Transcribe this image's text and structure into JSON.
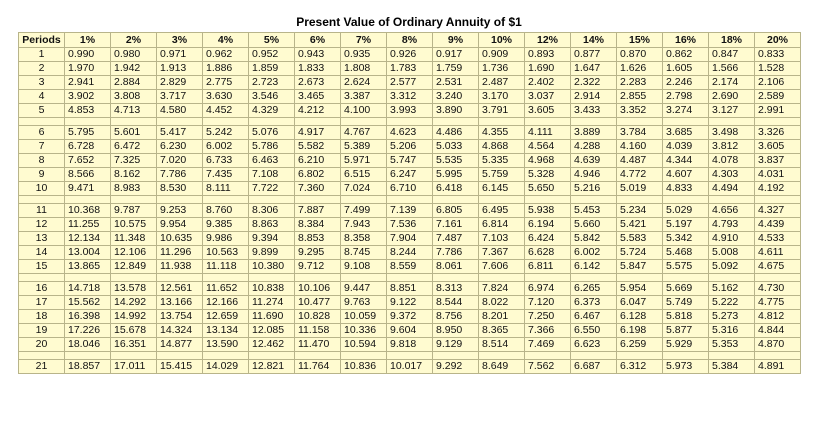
{
  "title": "Present Value of Ordinary Annuity of $1",
  "columns": [
    "Periods",
    "1%",
    "2%",
    "3%",
    "4%",
    "5%",
    "6%",
    "7%",
    "8%",
    "9%",
    "10%",
    "12%",
    "14%",
    "15%",
    "16%",
    "18%",
    "20%"
  ],
  "rows": [
    [
      "1",
      "0.990",
      "0.980",
      "0.971",
      "0.962",
      "0.952",
      "0.943",
      "0.935",
      "0.926",
      "0.917",
      "0.909",
      "0.893",
      "0.877",
      "0.870",
      "0.862",
      "0.847",
      "0.833"
    ],
    [
      "2",
      "1.970",
      "1.942",
      "1.913",
      "1.886",
      "1.859",
      "1.833",
      "1.808",
      "1.783",
      "1.759",
      "1.736",
      "1.690",
      "1.647",
      "1.626",
      "1.605",
      "1.566",
      "1.528"
    ],
    [
      "3",
      "2.941",
      "2.884",
      "2.829",
      "2.775",
      "2.723",
      "2.673",
      "2.624",
      "2.577",
      "2.531",
      "2.487",
      "2.402",
      "2.322",
      "2.283",
      "2.246",
      "2.174",
      "2.106"
    ],
    [
      "4",
      "3.902",
      "3.808",
      "3.717",
      "3.630",
      "3.546",
      "3.465",
      "3.387",
      "3.312",
      "3.240",
      "3.170",
      "3.037",
      "2.914",
      "2.855",
      "2.798",
      "2.690",
      "2.589"
    ],
    [
      "5",
      "4.853",
      "4.713",
      "4.580",
      "4.452",
      "4.329",
      "4.212",
      "4.100",
      "3.993",
      "3.890",
      "3.791",
      "3.605",
      "3.433",
      "3.352",
      "3.274",
      "3.127",
      "2.991"
    ],
    [
      "6",
      "5.795",
      "5.601",
      "5.417",
      "5.242",
      "5.076",
      "4.917",
      "4.767",
      "4.623",
      "4.486",
      "4.355",
      "4.111",
      "3.889",
      "3.784",
      "3.685",
      "3.498",
      "3.326"
    ],
    [
      "7",
      "6.728",
      "6.472",
      "6.230",
      "6.002",
      "5.786",
      "5.582",
      "5.389",
      "5.206",
      "5.033",
      "4.868",
      "4.564",
      "4.288",
      "4.160",
      "4.039",
      "3.812",
      "3.605"
    ],
    [
      "8",
      "7.652",
      "7.325",
      "7.020",
      "6.733",
      "6.463",
      "6.210",
      "5.971",
      "5.747",
      "5.535",
      "5.335",
      "4.968",
      "4.639",
      "4.487",
      "4.344",
      "4.078",
      "3.837"
    ],
    [
      "9",
      "8.566",
      "8.162",
      "7.786",
      "7.435",
      "7.108",
      "6.802",
      "6.515",
      "6.247",
      "5.995",
      "5.759",
      "5.328",
      "4.946",
      "4.772",
      "4.607",
      "4.303",
      "4.031"
    ],
    [
      "10",
      "9.471",
      "8.983",
      "8.530",
      "8.111",
      "7.722",
      "7.360",
      "7.024",
      "6.710",
      "6.418",
      "6.145",
      "5.650",
      "5.216",
      "5.019",
      "4.833",
      "4.494",
      "4.192"
    ],
    [
      "11",
      "10.368",
      "9.787",
      "9.253",
      "8.760",
      "8.306",
      "7.887",
      "7.499",
      "7.139",
      "6.805",
      "6.495",
      "5.938",
      "5.453",
      "5.234",
      "5.029",
      "4.656",
      "4.327"
    ],
    [
      "12",
      "11.255",
      "10.575",
      "9.954",
      "9.385",
      "8.863",
      "8.384",
      "7.943",
      "7.536",
      "7.161",
      "6.814",
      "6.194",
      "5.660",
      "5.421",
      "5.197",
      "4.793",
      "4.439"
    ],
    [
      "13",
      "12.134",
      "11.348",
      "10.635",
      "9.986",
      "9.394",
      "8.853",
      "8.358",
      "7.904",
      "7.487",
      "7.103",
      "6.424",
      "5.842",
      "5.583",
      "5.342",
      "4.910",
      "4.533"
    ],
    [
      "14",
      "13.004",
      "12.106",
      "11.296",
      "10.563",
      "9.899",
      "9.295",
      "8.745",
      "8.244",
      "7.786",
      "7.367",
      "6.628",
      "6.002",
      "5.724",
      "5.468",
      "5.008",
      "4.611"
    ],
    [
      "15",
      "13.865",
      "12.849",
      "11.938",
      "11.118",
      "10.380",
      "9.712",
      "9.108",
      "8.559",
      "8.061",
      "7.606",
      "6.811",
      "6.142",
      "5.847",
      "5.575",
      "5.092",
      "4.675"
    ],
    [
      "16",
      "14.718",
      "13.578",
      "12.561",
      "11.652",
      "10.838",
      "10.106",
      "9.447",
      "8.851",
      "8.313",
      "7.824",
      "6.974",
      "6.265",
      "5.954",
      "5.669",
      "5.162",
      "4.730"
    ],
    [
      "17",
      "15.562",
      "14.292",
      "13.166",
      "12.166",
      "11.274",
      "10.477",
      "9.763",
      "9.122",
      "8.544",
      "8.022",
      "7.120",
      "6.373",
      "6.047",
      "5.749",
      "5.222",
      "4.775"
    ],
    [
      "18",
      "16.398",
      "14.992",
      "13.754",
      "12.659",
      "11.690",
      "10.828",
      "10.059",
      "9.372",
      "8.756",
      "8.201",
      "7.250",
      "6.467",
      "6.128",
      "5.818",
      "5.273",
      "4.812"
    ],
    [
      "19",
      "17.226",
      "15.678",
      "14.324",
      "13.134",
      "12.085",
      "11.158",
      "10.336",
      "9.604",
      "8.950",
      "8.365",
      "7.366",
      "6.550",
      "6.198",
      "5.877",
      "5.316",
      "4.844"
    ],
    [
      "20",
      "18.046",
      "16.351",
      "14.877",
      "13.590",
      "12.462",
      "11.470",
      "10.594",
      "9.818",
      "9.129",
      "8.514",
      "7.469",
      "6.623",
      "6.259",
      "5.929",
      "5.353",
      "4.870"
    ],
    [
      "21",
      "18.857",
      "17.011",
      "15.415",
      "14.029",
      "12.821",
      "11.764",
      "10.836",
      "10.017",
      "9.292",
      "8.649",
      "7.562",
      "6.687",
      "6.312",
      "5.973",
      "5.384",
      "4.891"
    ]
  ]
}
